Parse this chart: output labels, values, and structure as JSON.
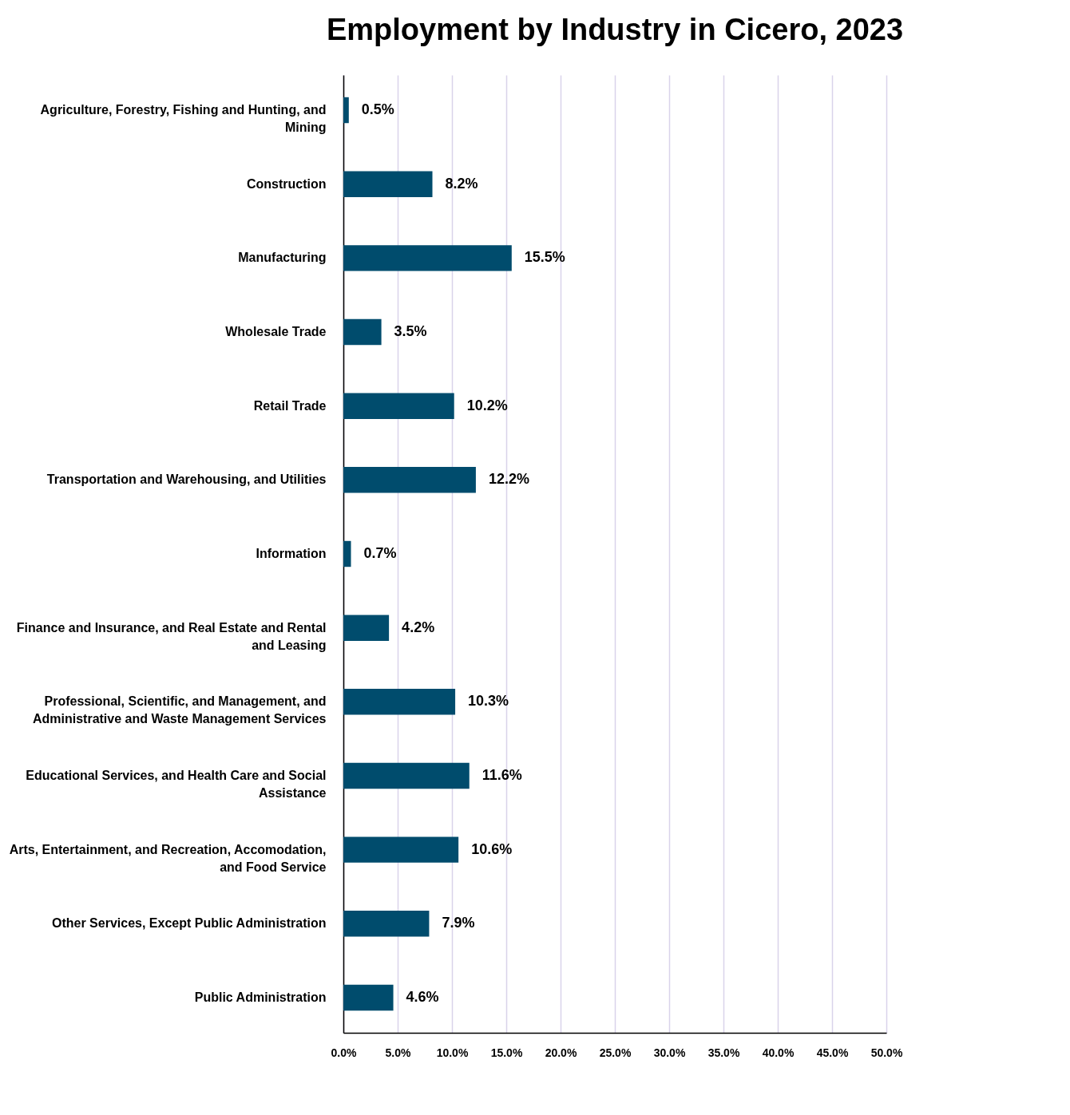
{
  "chart_data": {
    "type": "bar",
    "orientation": "horizontal",
    "title": "Employment by Industry in Cicero, 2023",
    "categories": [
      "Agriculture, Forestry, Fishing and Hunting, and Mining",
      "Construction",
      "Manufacturing",
      "Wholesale Trade",
      "Retail Trade",
      "Transportation and Warehousing, and Utilities",
      "Information",
      "Finance and Insurance, and Real Estate and Rental and Leasing",
      "Professional, Scientific, and Management, and Administrative and Waste Management Services",
      "Educational Services, and Health Care and Social Assistance",
      "Arts, Entertainment, and Recreation, Accomodation, and Food Service",
      "Other Services, Except Public Administration",
      "Public Administration"
    ],
    "values": [
      0.5,
      8.2,
      15.5,
      3.5,
      10.2,
      12.2,
      0.7,
      4.2,
      10.3,
      11.6,
      10.6,
      7.9,
      4.6
    ],
    "value_labels": [
      "0.5%",
      "8.2%",
      "15.5%",
      "3.5%",
      "10.2%",
      "12.2%",
      "0.7%",
      "4.2%",
      "10.3%",
      "11.6%",
      "10.6%",
      "7.9%",
      "4.6%"
    ],
    "color": "#004c6d",
    "xlim": [
      0,
      50
    ],
    "xticks": [
      {
        "value": 0,
        "label": "0.0%"
      },
      {
        "value": 5,
        "label": "5.0%"
      },
      {
        "value": 10,
        "label": "10.0%"
      },
      {
        "value": 15,
        "label": "15.0%"
      },
      {
        "value": 20,
        "label": "20.0%"
      },
      {
        "value": 25,
        "label": "25.0%"
      },
      {
        "value": 30,
        "label": "30.0%"
      },
      {
        "value": 35,
        "label": "35.0%"
      },
      {
        "value": 40,
        "label": "40.0%"
      },
      {
        "value": 45,
        "label": "45.0%"
      },
      {
        "value": 50,
        "label": "50.0%"
      }
    ],
    "grid": "x"
  }
}
